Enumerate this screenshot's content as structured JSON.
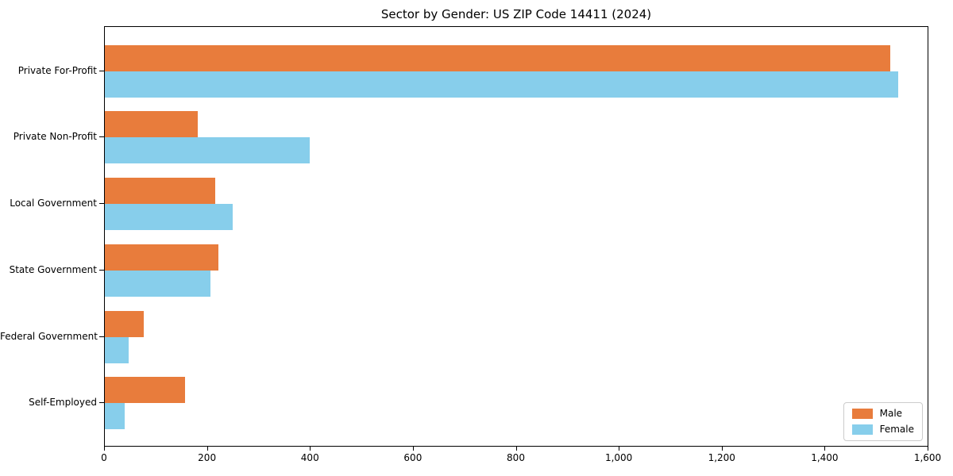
{
  "chart_data": {
    "type": "bar",
    "orientation": "horizontal",
    "title": "Sector by Gender: US ZIP Code 14411 (2024)",
    "categories": [
      "Private For-Profit",
      "Private Non-Profit",
      "Local Government",
      "State Government",
      "Federal Government",
      "Self-Employed"
    ],
    "series": [
      {
        "name": "Male",
        "color": "#e87c3c",
        "values": [
          1525,
          180,
          215,
          220,
          75,
          155
        ]
      },
      {
        "name": "Female",
        "color": "#87ceeb",
        "values": [
          1540,
          398,
          248,
          205,
          46,
          38
        ]
      }
    ],
    "xlabel": "",
    "ylabel": "",
    "xlim": [
      0,
      1600
    ],
    "xticks": {
      "values": [
        0,
        200,
        400,
        600,
        800,
        1000,
        1200,
        1400,
        1600
      ],
      "labels": [
        "0",
        "200",
        "400",
        "600",
        "800",
        "1,000",
        "1,200",
        "1,400",
        "1,600"
      ]
    },
    "grid": false,
    "legend": {
      "position": "lower right",
      "entries": [
        "Male",
        "Female"
      ]
    }
  }
}
